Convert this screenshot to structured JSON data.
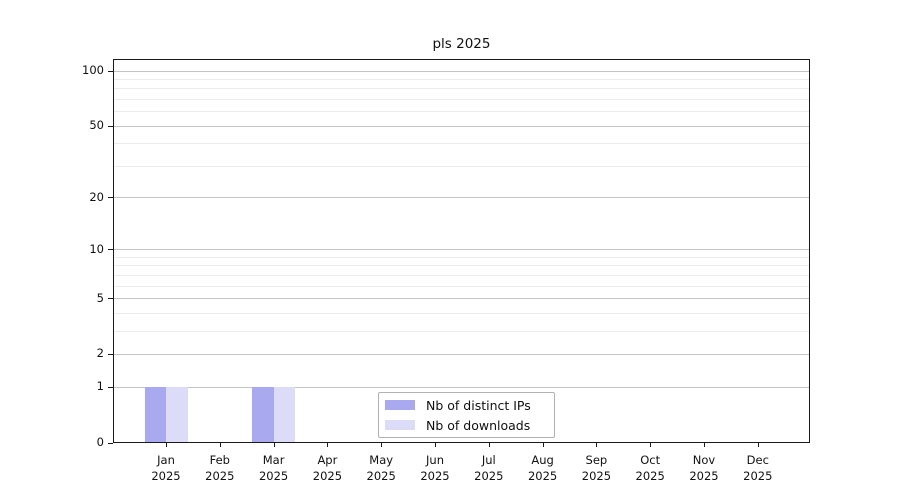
{
  "title": "pls 2025",
  "chart_data": {
    "type": "bar",
    "title": "pls 2025",
    "x": {
      "categories": [
        "Jan",
        "Feb",
        "Mar",
        "Apr",
        "May",
        "Jun",
        "Jul",
        "Aug",
        "Sep",
        "Oct",
        "Nov",
        "Dec"
      ],
      "sub_label": "2025"
    },
    "y": {
      "scale": "log1p",
      "major_ticks": [
        0,
        1,
        2,
        5,
        10,
        20,
        50,
        100
      ],
      "minor_ticks": [
        3,
        4,
        6,
        7,
        8,
        9,
        30,
        40,
        60,
        70,
        80,
        90
      ],
      "range_max": 115
    },
    "series": [
      {
        "name": "Nb of distinct IPs",
        "color": "#a9a9f0",
        "values": [
          1,
          0,
          1,
          0,
          0,
          0,
          0,
          0,
          0,
          0,
          0,
          0
        ]
      },
      {
        "name": "Nb of downloads",
        "color": "#dcdcf8",
        "values": [
          1,
          0,
          1,
          0,
          0,
          0,
          0,
          0,
          0,
          0,
          0,
          0
        ]
      }
    ],
    "legend": {
      "entries": [
        "Nb of distinct IPs",
        "Nb of downloads"
      ],
      "position": "inside-bottom-center"
    },
    "grid": true
  },
  "colors": {
    "bar_distinct_ips": "#a9a9f0",
    "bar_downloads": "#dcdcf8",
    "grid_major": "#c4c4c4",
    "grid_minor": "#ececec",
    "axis": "#1a1a1a",
    "background": "#ffffff"
  }
}
